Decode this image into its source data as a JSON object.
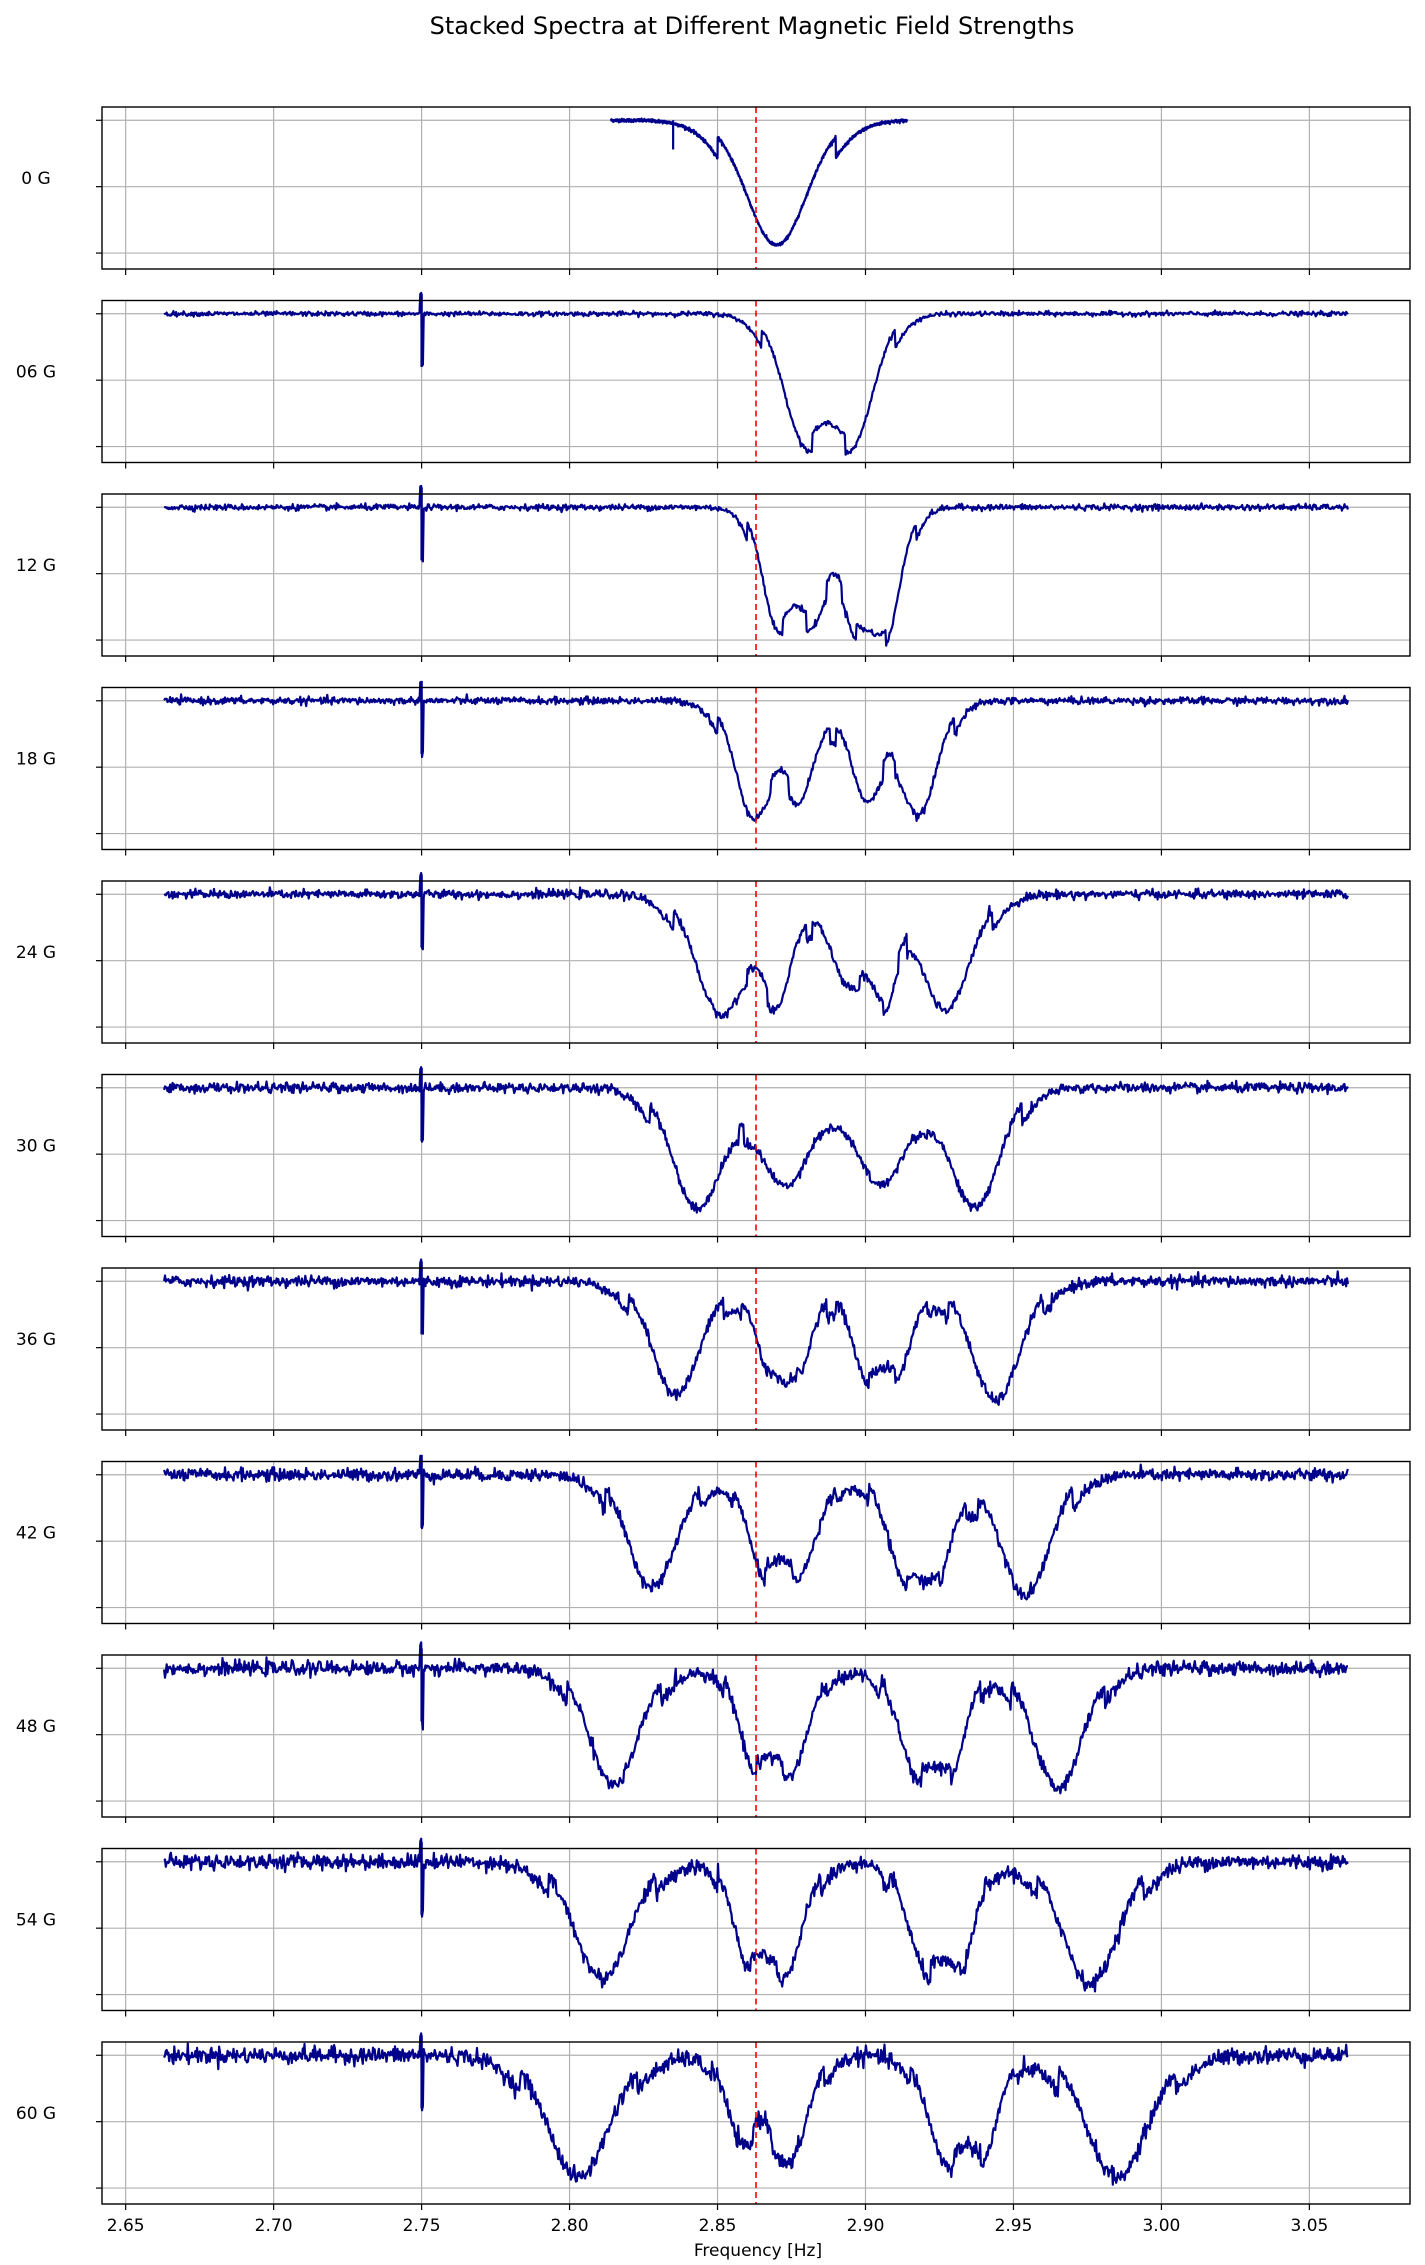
{
  "chart_data": {
    "type": "line",
    "title": "Stacked Spectra at Different Magnetic Field Strengths",
    "xlabel": "Frequency [Hz]",
    "xlim": [
      2.642,
      3.084
    ],
    "x_ticks": [
      "2.65",
      "2.70",
      "2.75",
      "2.80",
      "2.85",
      "2.90",
      "2.95",
      "3.00",
      "3.05"
    ],
    "grid": true,
    "line_color": "#00008b",
    "reference_line": {
      "x": 2.863,
      "color": "#ff0000",
      "style": "dashed"
    },
    "panels": [
      {
        "label": "0 G",
        "x_start": 2.814,
        "x_end": 2.914,
        "dips": [
          {
            "x": 2.87,
            "depth": 0.94,
            "width": 0.01
          }
        ]
      },
      {
        "label": "06 G",
        "x_start": 2.663,
        "x_end": 3.063,
        "dips": [
          {
            "x": 2.879,
            "depth": 0.85,
            "width": 0.007
          },
          {
            "x": 2.896,
            "depth": 0.87,
            "width": 0.007
          }
        ]
      },
      {
        "label": "12 G",
        "x_start": 2.663,
        "x_end": 3.063,
        "dips": [
          {
            "x": 2.87,
            "depth": 0.8,
            "width": 0.005
          },
          {
            "x": 2.882,
            "depth": 0.72,
            "width": 0.005
          },
          {
            "x": 2.897,
            "depth": 0.72,
            "width": 0.005
          },
          {
            "x": 2.907,
            "depth": 0.82,
            "width": 0.005
          }
        ]
      },
      {
        "label": "18 G",
        "x_start": 2.663,
        "x_end": 3.063,
        "dips": [
          {
            "x": 2.862,
            "depth": 0.85,
            "width": 0.006
          },
          {
            "x": 2.878,
            "depth": 0.65,
            "width": 0.005
          },
          {
            "x": 2.9,
            "depth": 0.7,
            "width": 0.005
          },
          {
            "x": 2.918,
            "depth": 0.85,
            "width": 0.006
          }
        ]
      },
      {
        "label": "24 G",
        "x_start": 2.663,
        "x_end": 3.063,
        "dips": [
          {
            "x": 2.851,
            "depth": 0.9,
            "width": 0.008
          },
          {
            "x": 2.87,
            "depth": 0.7,
            "width": 0.005
          },
          {
            "x": 2.894,
            "depth": 0.65,
            "width": 0.006
          },
          {
            "x": 2.906,
            "depth": 0.6,
            "width": 0.004
          },
          {
            "x": 2.927,
            "depth": 0.88,
            "width": 0.008
          }
        ]
      },
      {
        "label": "30 G",
        "x_start": 2.663,
        "x_end": 3.063,
        "dips": [
          {
            "x": 2.843,
            "depth": 0.9,
            "width": 0.008
          },
          {
            "x": 2.873,
            "depth": 0.72,
            "width": 0.008
          },
          {
            "x": 2.905,
            "depth": 0.72,
            "width": 0.008
          },
          {
            "x": 2.937,
            "depth": 0.9,
            "width": 0.008
          }
        ]
      },
      {
        "label": "36 G",
        "x_start": 2.663,
        "x_end": 3.063,
        "dips": [
          {
            "x": 2.836,
            "depth": 0.85,
            "width": 0.008
          },
          {
            "x": 2.868,
            "depth": 0.55,
            "width": 0.005
          },
          {
            "x": 2.877,
            "depth": 0.58,
            "width": 0.005
          },
          {
            "x": 2.9,
            "depth": 0.62,
            "width": 0.005
          },
          {
            "x": 2.911,
            "depth": 0.58,
            "width": 0.005
          },
          {
            "x": 2.944,
            "depth": 0.9,
            "width": 0.008
          }
        ]
      },
      {
        "label": "42 G",
        "x_start": 2.663,
        "x_end": 3.063,
        "dips": [
          {
            "x": 2.828,
            "depth": 0.85,
            "width": 0.008
          },
          {
            "x": 2.865,
            "depth": 0.6,
            "width": 0.005
          },
          {
            "x": 2.878,
            "depth": 0.68,
            "width": 0.006
          },
          {
            "x": 2.913,
            "depth": 0.68,
            "width": 0.006
          },
          {
            "x": 2.924,
            "depth": 0.62,
            "width": 0.005
          },
          {
            "x": 2.954,
            "depth": 0.9,
            "width": 0.008
          }
        ]
      },
      {
        "label": "48 G",
        "x_start": 2.663,
        "x_end": 3.063,
        "dips": [
          {
            "x": 2.815,
            "depth": 0.88,
            "width": 0.008
          },
          {
            "x": 2.862,
            "depth": 0.6,
            "width": 0.005
          },
          {
            "x": 2.875,
            "depth": 0.72,
            "width": 0.006
          },
          {
            "x": 2.917,
            "depth": 0.72,
            "width": 0.006
          },
          {
            "x": 2.929,
            "depth": 0.62,
            "width": 0.005
          },
          {
            "x": 2.965,
            "depth": 0.9,
            "width": 0.008
          }
        ]
      },
      {
        "label": "54 G",
        "x_start": 2.663,
        "x_end": 3.063,
        "dips": [
          {
            "x": 2.811,
            "depth": 0.88,
            "width": 0.009
          },
          {
            "x": 2.86,
            "depth": 0.62,
            "width": 0.005
          },
          {
            "x": 2.873,
            "depth": 0.78,
            "width": 0.006
          },
          {
            "x": 2.92,
            "depth": 0.72,
            "width": 0.006
          },
          {
            "x": 2.932,
            "depth": 0.66,
            "width": 0.005
          },
          {
            "x": 2.976,
            "depth": 0.92,
            "width": 0.009
          }
        ]
      },
      {
        "label": "60 G",
        "x_start": 2.663,
        "x_end": 3.063,
        "dips": [
          {
            "x": 2.803,
            "depth": 0.92,
            "width": 0.01
          },
          {
            "x": 2.858,
            "depth": 0.58,
            "width": 0.005
          },
          {
            "x": 2.874,
            "depth": 0.8,
            "width": 0.006
          },
          {
            "x": 2.927,
            "depth": 0.74,
            "width": 0.006
          },
          {
            "x": 2.94,
            "depth": 0.62,
            "width": 0.005
          },
          {
            "x": 2.985,
            "depth": 0.92,
            "width": 0.01
          }
        ]
      }
    ],
    "spike": {
      "x": 2.75,
      "up": 0.15,
      "down": 0.4
    }
  }
}
